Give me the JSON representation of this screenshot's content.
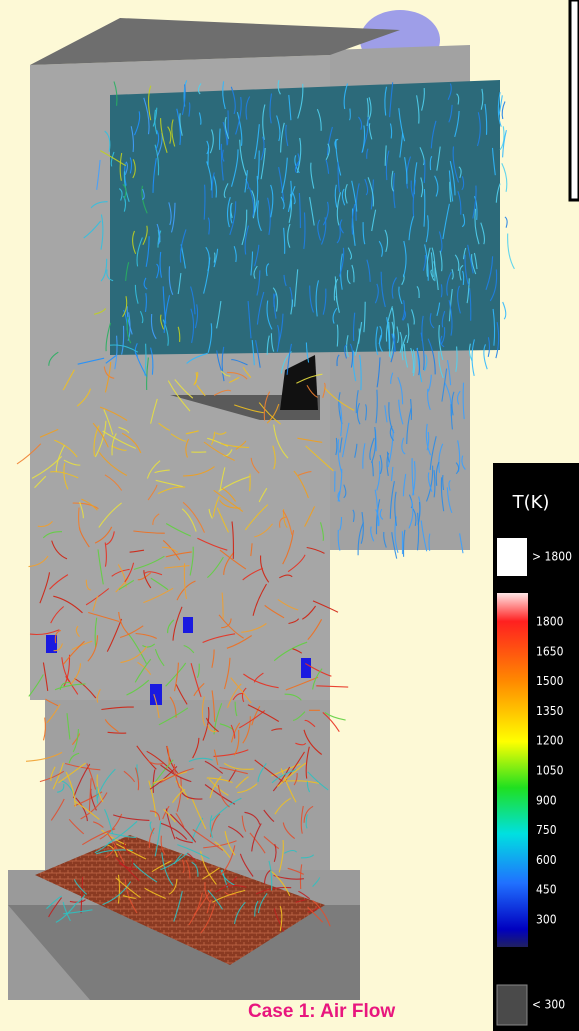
{
  "legend": {
    "title": "T(K)",
    "above_label": "> 1800",
    "ticks": [
      1800,
      1650,
      1500,
      1350,
      1200,
      1050,
      900,
      750,
      600,
      450,
      300
    ],
    "below_label": "< 300"
  },
  "caption": "Case 1: Air Flow"
}
